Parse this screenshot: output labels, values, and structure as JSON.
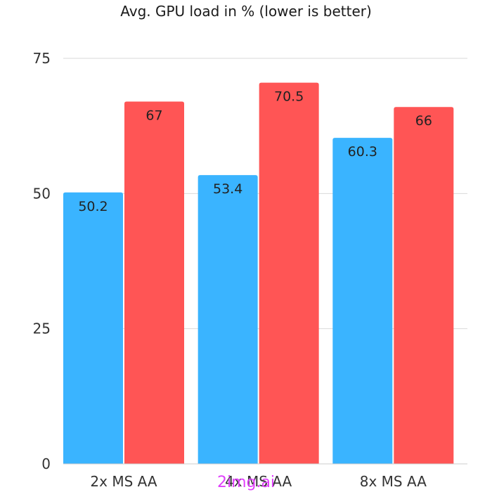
{
  "chart_data": {
    "type": "bar",
    "title": "Avg. GPU load in % (lower is better)",
    "xlabel": "",
    "ylabel": "",
    "categories": [
      "2x MS AA",
      "4x MS AA",
      "8x MS AA"
    ],
    "series": [
      {
        "values": [
          50.2,
          53.4,
          60.3
        ],
        "color": "#3ab4ff"
      },
      {
        "values": [
          67,
          70.5,
          66
        ],
        "color": "#ff5555"
      }
    ],
    "ylim": [
      0,
      75
    ],
    "yticks": [
      0,
      25,
      50,
      75
    ],
    "grid": true,
    "legend": "none"
  },
  "watermark": "2img.ai"
}
